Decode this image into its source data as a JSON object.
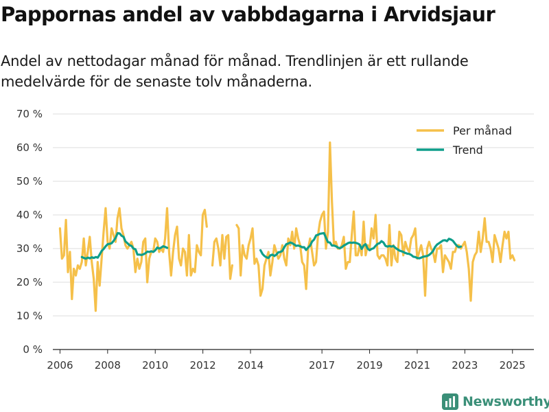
{
  "colors": {
    "monthly": "#f5c04a",
    "trend": "#0e9e8a",
    "grid": "#dddddd",
    "brand": "#3a8f78"
  },
  "header": {
    "title": "Pappornas andel av vabbdagarna i Arvidsjaur",
    "subtitle": "Andel av nettodagar månad för månad. Trendlinjen är ett rullande medelvärde för de senaste tolv månaderna."
  },
  "brand": {
    "name": "Newsworthy",
    "icon": "bar-chart-logo-icon"
  },
  "chart_data": {
    "type": "line",
    "title": "Pappornas andel av vabbdagarna i Arvidsjaur",
    "xlabel": "",
    "ylabel": "",
    "xlim": [
      2005.7,
      2025.9
    ],
    "ylim": [
      0,
      70
    ],
    "y_ticks": [
      0,
      10,
      20,
      30,
      40,
      50,
      60,
      70
    ],
    "y_tick_labels": [
      "0 %",
      "10 %",
      "20 %",
      "30 %",
      "40 %",
      "50 %",
      "60 %",
      "70 %"
    ],
    "x_ticks": [
      2006,
      2008,
      2010,
      2012,
      2014,
      2017,
      2019,
      2021,
      2023,
      2025
    ],
    "x_tick_labels": [
      "2006",
      "2008",
      "2010",
      "2012",
      "2014",
      "2017",
      "2019",
      "2021",
      "2023",
      "2025"
    ],
    "grid": true,
    "legend_position": "top-right",
    "series": [
      {
        "name": "Per månad",
        "segments": [
          {
            "start": 2006.0,
            "step": 0.0833,
            "values": [
              36,
              27,
              28,
              38.5,
              23,
              29,
              15,
              24,
              22,
              25,
              24,
              26,
              33,
              25,
              29,
              33.5,
              26,
              21,
              11.5,
              26,
              19,
              27,
              35,
              42,
              32,
              30,
              36,
              34,
              32,
              39,
              42,
              36,
              34,
              31,
              30,
              31,
              32,
              30,
              23,
              27,
              24,
              26,
              32,
              33,
              20,
              27,
              29,
              29,
              33,
              32,
              29,
              30,
              29,
              33,
              42,
              29,
              22,
              29,
              34,
              36.5,
              27,
              25,
              30,
              29,
              22,
              34,
              22,
              24,
              23,
              31,
              29,
              28,
              40,
              41.5,
              36.5
            ]
          },
          {
            "start": 2012.4,
            "step": 0.0833,
            "values": [
              25,
              32,
              33,
              30,
              25,
              34,
              27,
              33.5,
              34,
              21,
              25
            ]
          },
          {
            "start": 2013.42,
            "step": 0.0833,
            "values": [
              37,
              36,
              22,
              31,
              28,
              27,
              31,
              33,
              36,
              25.5,
              27,
              25,
              16,
              18,
              25,
              27,
              29,
              22,
              26,
              31,
              29,
              27,
              28,
              31,
              27,
              25,
              33,
              31,
              35,
              30,
              36,
              33,
              31,
              26,
              25,
              18,
              30,
              33,
              29,
              25,
              26,
              34,
              38,
              40,
              41,
              30,
              35,
              61.5,
              44,
              31,
              32,
              30,
              30,
              31,
              33.5,
              24,
              26,
              26,
              34,
              41,
              28,
              28,
              31,
              28,
              38,
              28,
              31,
              30,
              36,
              33,
              40,
              28,
              27,
              28,
              28,
              27,
              25,
              37,
              25,
              31,
              27,
              26,
              35,
              34,
              28,
              32,
              30,
              29,
              33,
              34,
              36,
              27,
              29,
              31,
              28,
              16,
              30,
              32,
              30,
              29,
              26,
              30,
              30,
              31,
              23,
              28,
              27,
              26,
              24,
              29,
              29,
              31,
              31,
              30,
              31,
              32,
              29,
              24,
              14.5,
              26,
              28,
              29,
              35,
              29,
              33,
              39,
              32,
              32,
              30,
              26,
              34,
              32,
              30,
              26,
              31,
              35,
              33,
              35,
              27,
              28,
              26.5
            ]
          }
        ]
      },
      {
        "name": "Trend",
        "segments": [
          {
            "start": 2006.92,
            "step": 0.0833,
            "values": [
              27.5,
              27.2,
              27,
              27.3,
              27.1,
              27.4,
              27.2,
              27.5,
              27.3,
              28.3,
              29.3,
              29.9,
              30.7,
              31.3,
              31.4,
              31.6,
              32.3,
              33.2,
              34.6,
              34.5,
              33.8,
              33.5,
              32.1,
              31.6,
              31,
              30.8,
              30,
              29.8,
              28.2,
              28.2,
              28.1,
              28.3,
              28.6,
              29.1,
              29,
              29.2,
              29,
              29.5,
              30.3,
              30,
              30.3,
              30.7,
              30.5,
              30.2
            ]
          },
          {
            "start": 2014.42,
            "step": 0.0833,
            "values": [
              29.5,
              28.4,
              27.8,
              27.4,
              27.2,
              28,
              28.2,
              27.8,
              28.2,
              28.9,
              29,
              29.3,
              30.4,
              31.3,
              31.5,
              31.8,
              31.6,
              31.2,
              30.8,
              30.9,
              30.7,
              30.4,
              30.4,
              29.6,
              30.3,
              30.9,
              32.1,
              32.7,
              33.9,
              34.1,
              34.4,
              34.5,
              34.6,
              33.2,
              31.9,
              31.8,
              30.9,
              30.9,
              30.7,
              30.3,
              30.1,
              30.4,
              30.9,
              31.2,
              31.6,
              31.8,
              31.7,
              31.8,
              31.7,
              31.5,
              31.2,
              29.9,
              30.9,
              31.3,
              30,
              29.5,
              29.9,
              30.1,
              30.8,
              31.4,
              31.6,
              32.2,
              31.8,
              30.8,
              30.6,
              30.8,
              30.6,
              30.8,
              30.2,
              29.8,
              29.4,
              29.2,
              29,
              28.7,
              28.5,
              28.4,
              28.1,
              27.6,
              27.5,
              27.2,
              27.1,
              27.3,
              27.6,
              27.7,
              27.8,
              28.1,
              28.6,
              29.3,
              30.5,
              31.2,
              31.6,
              32,
              32.4,
              32.5,
              32.2,
              32.9,
              32.7,
              32.3,
              31.5,
              30.8,
              30.4,
              30.6
            ]
          }
        ]
      }
    ]
  }
}
